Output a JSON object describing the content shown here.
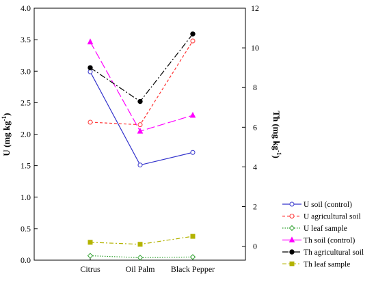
{
  "chart_data": {
    "type": "line",
    "categories": [
      "Citrus",
      "Oil Palm",
      "Black Pepper"
    ],
    "left_axis": {
      "label": "U (mg kg-1)",
      "range": [
        0.0,
        4.0
      ],
      "ticks": [
        "0.0",
        "0.5",
        "1.0",
        "1.5",
        "2.0",
        "2.5",
        "3.0",
        "3.5",
        "4.0"
      ]
    },
    "right_axis": {
      "label": "Th (mg kg-1)",
      "range": [
        -0.7,
        12
      ],
      "ticks": [
        "0",
        "2",
        "4",
        "6",
        "8",
        "10",
        "12"
      ]
    },
    "series": [
      {
        "name": "U soil (control)",
        "axis": "left",
        "color": "#3333cc",
        "dash": "",
        "marker": "circle-open",
        "values": [
          2.99,
          1.51,
          1.71
        ]
      },
      {
        "name": "U agricultural soil",
        "axis": "left",
        "color": "#ff3333",
        "dash": "4,3",
        "marker": "circle-open",
        "values": [
          2.19,
          2.15,
          3.48
        ]
      },
      {
        "name": "U leaf sample",
        "axis": "left",
        "color": "#2ea02e",
        "dash": "1.5,2",
        "marker": "diamond-open",
        "values": [
          0.07,
          0.04,
          0.05
        ]
      },
      {
        "name": "Th soil (control)",
        "axis": "right",
        "color": "#ff00ff",
        "dash": "12,4",
        "marker": "triangle",
        "values": [
          10.3,
          5.8,
          6.6
        ]
      },
      {
        "name": "Th agricultural soil",
        "axis": "right",
        "color": "#000000",
        "dash": "9,3,2,3",
        "marker": "circle",
        "values": [
          9.0,
          7.3,
          10.7
        ]
      },
      {
        "name": "Th leaf sample",
        "axis": "right",
        "color": "#b3b300",
        "dash": "6,3,2,3",
        "marker": "square",
        "values": [
          0.2,
          0.1,
          0.5
        ]
      }
    ],
    "grid": false,
    "legend_position": "bottom-right"
  }
}
